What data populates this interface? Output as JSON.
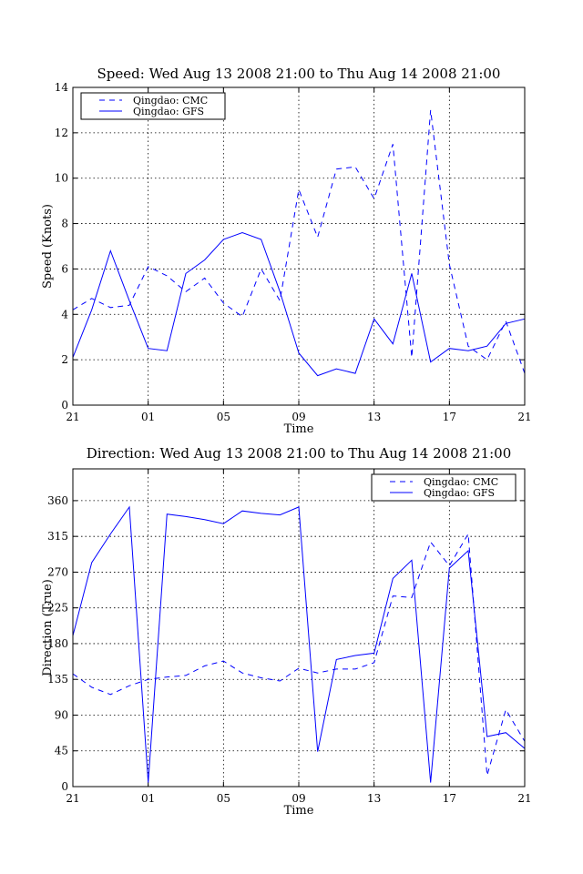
{
  "chart_data": [
    {
      "type": "line",
      "title": "Speed: Wed Aug 13 2008 21:00 to Thu Aug 14 2008 21:00",
      "xlabel": "Time",
      "ylabel": "Speed (Knots)",
      "x_ticks": [
        "21",
        "01",
        "05",
        "09",
        "13",
        "17",
        "21"
      ],
      "y_ticks": [
        0,
        2,
        4,
        6,
        8,
        10,
        12,
        14
      ],
      "xlim": [
        0,
        24
      ],
      "ylim": [
        0,
        14
      ],
      "grid": true,
      "legend_position": "upper-left",
      "series": [
        {
          "name": "Qingdao: CMC",
          "style": "dashed",
          "color": "#0000ff",
          "x": [
            0,
            1,
            2,
            3,
            4,
            5,
            6,
            7,
            8,
            9,
            10,
            11,
            12,
            13,
            14,
            15,
            16,
            17,
            18,
            19,
            20,
            21,
            22,
            23,
            24
          ],
          "values": [
            4.2,
            4.7,
            4.3,
            4.4,
            6.1,
            5.7,
            5.0,
            5.6,
            4.5,
            3.9,
            6.0,
            4.6,
            9.5,
            7.4,
            10.4,
            10.5,
            9.1,
            11.5,
            2.1,
            13.0,
            6.2,
            2.6,
            2.0,
            3.7,
            1.4
          ]
        },
        {
          "name": "Qingdao: GFS",
          "style": "solid",
          "color": "#0000ff",
          "x": [
            0,
            1,
            2,
            3,
            4,
            5,
            6,
            7,
            8,
            9,
            10,
            11,
            12,
            13,
            14,
            15,
            16,
            17,
            18,
            19,
            20,
            21,
            22,
            23,
            24
          ],
          "values": [
            2.1,
            4.2,
            6.8,
            4.6,
            2.5,
            2.4,
            5.8,
            6.4,
            7.3,
            7.6,
            7.3,
            5.0,
            2.3,
            1.3,
            1.6,
            1.4,
            3.8,
            2.7,
            5.8,
            1.9,
            2.5,
            2.4,
            2.6,
            3.6,
            3.8
          ]
        }
      ]
    },
    {
      "type": "line",
      "title": "Direction: Wed Aug 13 2008 21:00 to Thu Aug 14 2008 21:00",
      "xlabel": "Time",
      "ylabel": "Direction (True)",
      "x_ticks": [
        "21",
        "01",
        "05",
        "09",
        "13",
        "17",
        "21"
      ],
      "y_ticks": [
        0,
        45,
        90,
        135,
        180,
        225,
        270,
        315,
        360
      ],
      "xlim": [
        0,
        24
      ],
      "ylim": [
        0,
        400
      ],
      "grid": true,
      "legend_position": "upper-right",
      "series": [
        {
          "name": "Qingdao: CMC",
          "style": "dashed",
          "color": "#0000ff",
          "x": [
            0,
            1,
            2,
            3,
            4,
            5,
            6,
            7,
            8,
            9,
            10,
            11,
            12,
            13,
            14,
            15,
            16,
            17,
            18,
            19,
            20,
            21,
            22,
            23,
            24
          ],
          "values": [
            142,
            125,
            116,
            127,
            135,
            138,
            140,
            152,
            158,
            143,
            137,
            133,
            149,
            143,
            148,
            148,
            156,
            240,
            238,
            308,
            278,
            318,
            14,
            97,
            57
          ]
        },
        {
          "name": "Qingdao: GFS",
          "style": "solid",
          "color": "#0000ff",
          "x": [
            0,
            1,
            2,
            3,
            4,
            5,
            6,
            7,
            8,
            9,
            10,
            11,
            12,
            13,
            14,
            15,
            16,
            17,
            18,
            19,
            20,
            21,
            22,
            23,
            24
          ],
          "values": [
            190,
            282,
            318,
            352,
            5,
            343,
            340,
            336,
            331,
            347,
            344,
            342,
            352,
            44,
            160,
            165,
            168,
            262,
            285,
            5,
            275,
            297,
            63,
            68,
            48
          ]
        }
      ]
    }
  ]
}
